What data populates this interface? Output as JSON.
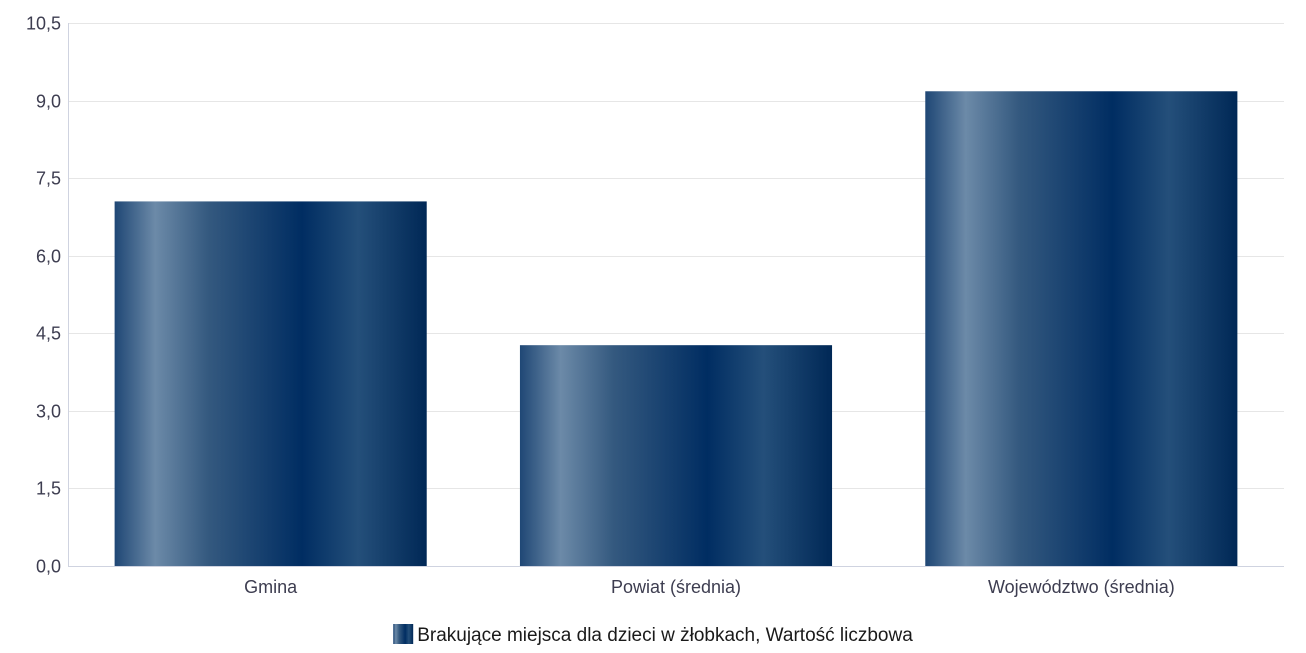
{
  "chart_data": {
    "type": "bar",
    "categories": [
      "Gmina",
      "Powiat (średnia)",
      "Województwo (średnia)"
    ],
    "series": [
      {
        "name": "Brakujące miejsca dla dzieci w żłobkach, Wartość liczbowa",
        "values": [
          7.05,
          4.27,
          9.18
        ]
      }
    ],
    "ylim": [
      0,
      10.5
    ],
    "yticks": [
      "0,0",
      "1,5",
      "3,0",
      "4,5",
      "6,0",
      "7,5",
      "9,0",
      "10,5"
    ],
    "ytick_values": [
      0,
      1.5,
      3.0,
      4.5,
      6.0,
      7.5,
      9.0,
      10.5
    ],
    "grid": true,
    "legend_position": "bottom-center",
    "colors": {
      "bar_dark": "#002d62",
      "bar_light": "#6c8aa8",
      "grid": "#e6e6e6",
      "axis": "#cfd3e0",
      "text": "#3d3d50"
    }
  }
}
